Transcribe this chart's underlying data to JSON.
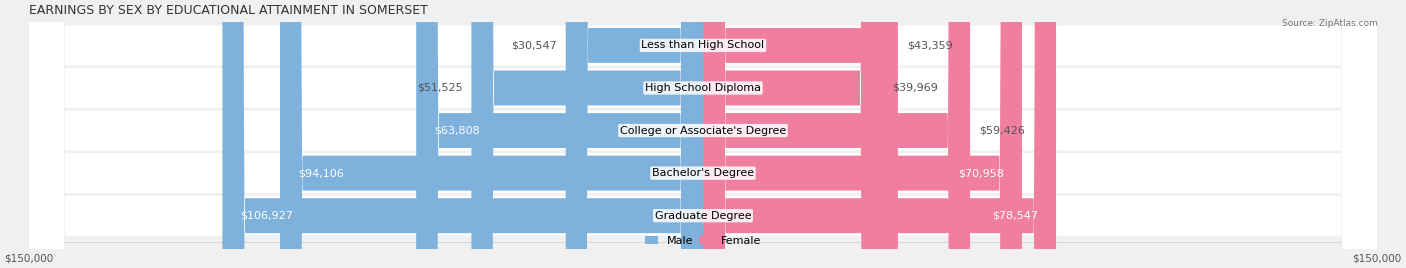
{
  "title": "EARNINGS BY SEX BY EDUCATIONAL ATTAINMENT IN SOMERSET",
  "source": "Source: ZipAtlas.com",
  "categories": [
    "Less than High School",
    "High School Diploma",
    "College or Associate's Degree",
    "Bachelor's Degree",
    "Graduate Degree"
  ],
  "male_values": [
    30547,
    51525,
    63808,
    94106,
    106927
  ],
  "female_values": [
    43359,
    39969,
    59426,
    70958,
    78547
  ],
  "male_color": "#7EB2DD",
  "female_color": "#F07EA0",
  "max_val": 150000,
  "bg_color": "#f0f0f0",
  "row_bg_color": "#e8e8e8",
  "bar_bg_color": "#d8d8d8",
  "title_fontsize": 9,
  "label_fontsize": 8,
  "tick_fontsize": 7.5
}
